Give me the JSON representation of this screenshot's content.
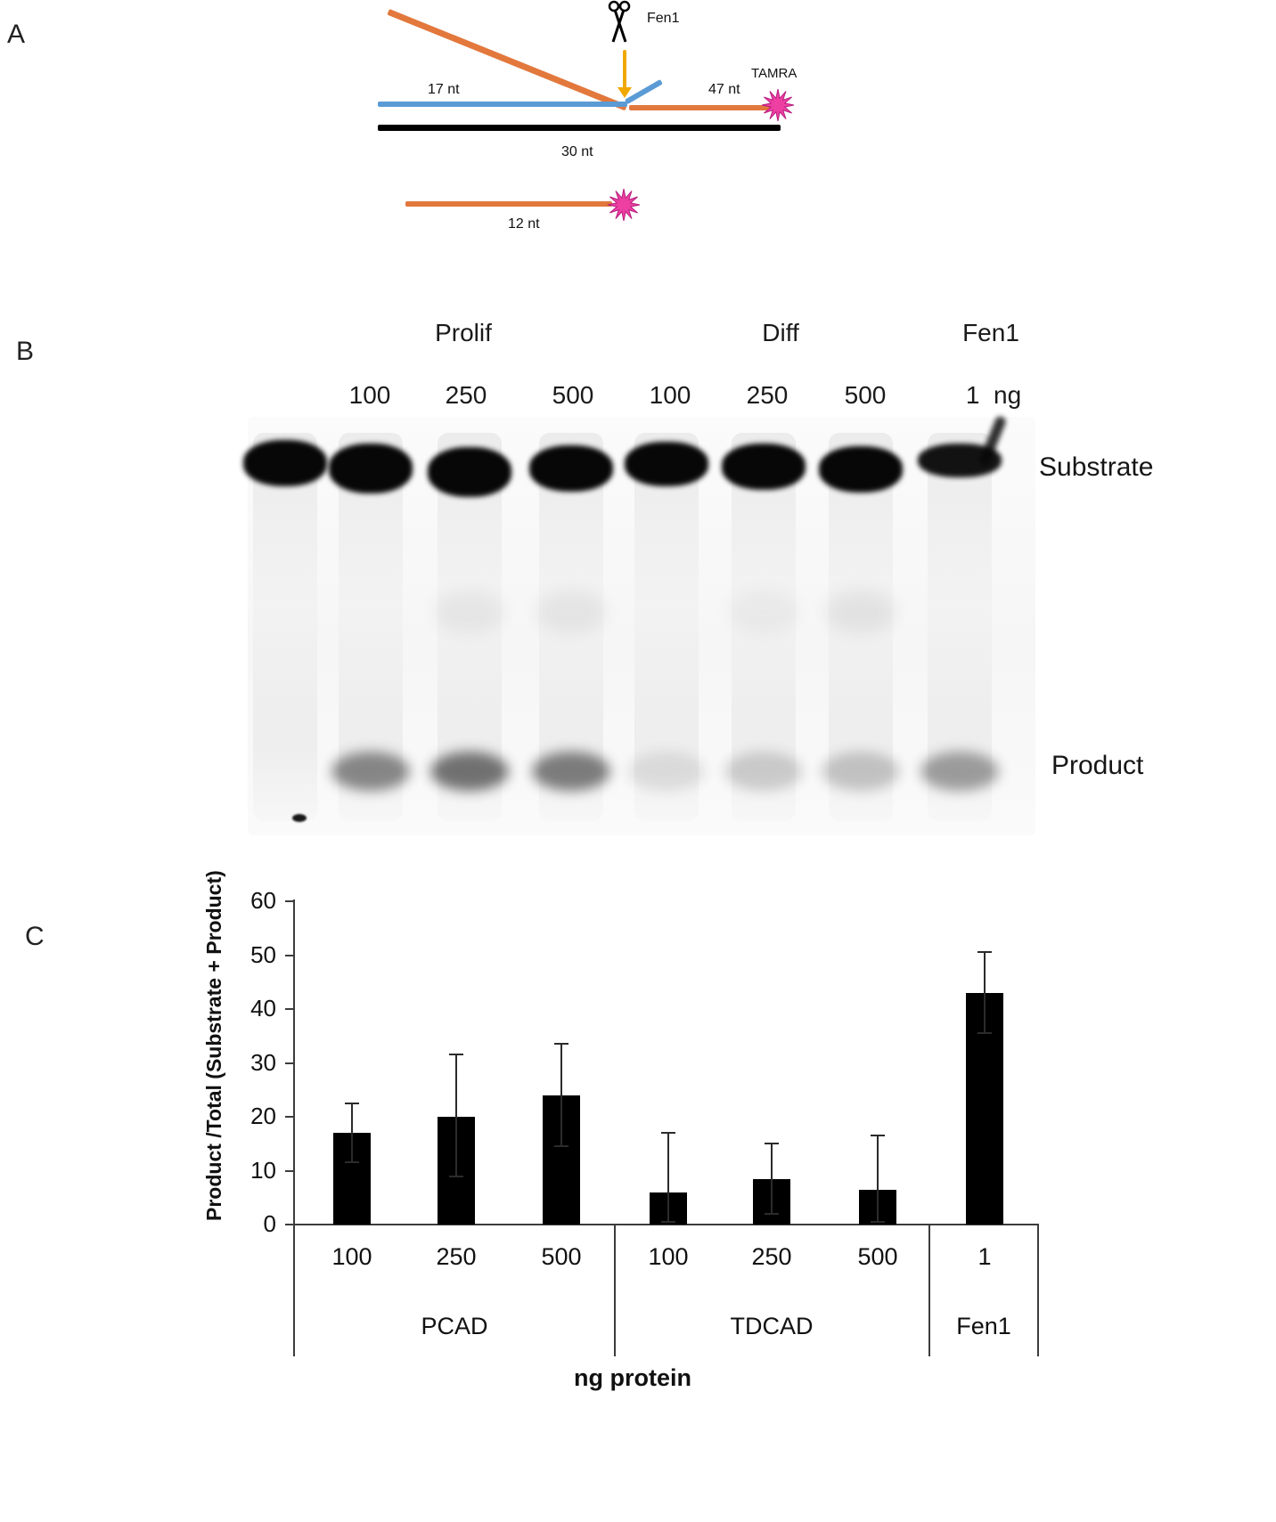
{
  "figure": {
    "panels": {
      "a": "A",
      "b": "B",
      "c": "C"
    }
  },
  "diagram": {
    "fen1_label": "Fen1",
    "tamra_label": "TAMRA",
    "flap_upstream_length": "17 nt",
    "downstream_length": "47 nt",
    "template_length": "30 nt",
    "product_length": "12 nt",
    "colors": {
      "flap": "#e2783c",
      "upstream": "#5b9bd5",
      "template": "#000000",
      "arrow": "#f0a800",
      "tamra": "#ee3fa3",
      "tamra_outline": "#b81f7e"
    }
  },
  "gel": {
    "groups": [
      {
        "label": "Prolif",
        "amounts": [
          "100",
          "250",
          "500"
        ]
      },
      {
        "label": "Diff",
        "amounts": [
          "100",
          "250",
          "500"
        ]
      },
      {
        "label": "Fen1",
        "amounts": [
          "1  ng"
        ]
      }
    ],
    "right_labels": {
      "substrate": "Substrate",
      "product": "Product"
    },
    "lanes": [
      {
        "substrate": 1.0,
        "product": 0.0
      },
      {
        "substrate": 1.0,
        "product": 0.5
      },
      {
        "substrate": 1.0,
        "product": 0.6
      },
      {
        "substrate": 1.0,
        "product": 0.55
      },
      {
        "substrate": 1.0,
        "product": 0.1
      },
      {
        "substrate": 1.0,
        "product": 0.18
      },
      {
        "substrate": 1.0,
        "product": 0.22
      },
      {
        "substrate": 0.95,
        "product": 0.4
      }
    ]
  },
  "chart_data": {
    "type": "bar",
    "title": "",
    "ylabel": "Product /Total (Substrate + Product)",
    "xlabel": "ng protein",
    "ylim": [
      0,
      60
    ],
    "yticks": [
      0,
      10,
      20,
      30,
      40,
      50,
      60
    ],
    "bar_color": "#000000",
    "legend": "none",
    "grid": "off",
    "groups": [
      {
        "label": "PCAD",
        "bars": [
          {
            "x": "100",
            "value": 17,
            "err_plus": 5.5,
            "err_minus": 5.5
          },
          {
            "x": "250",
            "value": 20,
            "err_plus": 11.5,
            "err_minus": 11
          },
          {
            "x": "500",
            "value": 24,
            "err_plus": 9.5,
            "err_minus": 9.5
          }
        ]
      },
      {
        "label": "TDCAD",
        "bars": [
          {
            "x": "100",
            "value": 6,
            "err_plus": 11,
            "err_minus": 5.5
          },
          {
            "x": "250",
            "value": 8.5,
            "err_plus": 6.5,
            "err_minus": 6.5
          },
          {
            "x": "500",
            "value": 6.5,
            "err_plus": 10,
            "err_minus": 6
          }
        ]
      },
      {
        "label": "Fen1",
        "bars": [
          {
            "x": "1",
            "value": 43,
            "err_plus": 7.5,
            "err_minus": 7.5
          }
        ]
      }
    ]
  }
}
